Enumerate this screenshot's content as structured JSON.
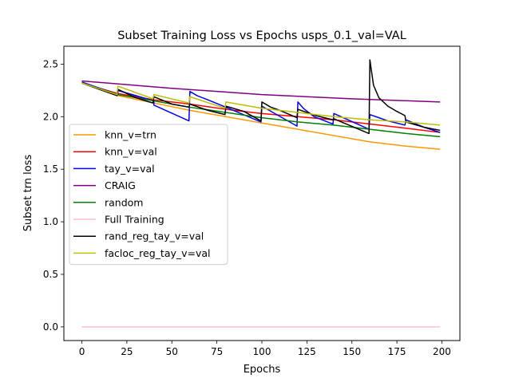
{
  "chart_data": {
    "type": "line",
    "title": "Subset Training Loss vs Epochs usps_0.1_val=VAL",
    "xlabel": "Epochs",
    "ylabel": "Subset trn loss",
    "xlim": [
      -10,
      210
    ],
    "ylim": [
      -0.13,
      2.67
    ],
    "xticks": [
      0,
      25,
      50,
      75,
      100,
      125,
      150,
      175,
      200
    ],
    "yticks": [
      0.0,
      0.5,
      1.0,
      1.5,
      2.0,
      2.5
    ],
    "xtick_labels": [
      "0",
      "25",
      "50",
      "75",
      "100",
      "125",
      "150",
      "175",
      "200"
    ],
    "ytick_labels": [
      "0.0",
      "0.5",
      "1.0",
      "1.5",
      "2.0",
      "2.5"
    ],
    "grid": false,
    "legend_position": "center-left",
    "series": [
      {
        "name": "knn_v=trn",
        "color": "#ff9900",
        "x": [
          0,
          20,
          40,
          60,
          80,
          100,
          120,
          140,
          160,
          180,
          199
        ],
        "y": [
          2.32,
          2.2,
          2.13,
          2.06,
          2.0,
          1.94,
          1.88,
          1.82,
          1.76,
          1.72,
          1.69
        ]
      },
      {
        "name": "knn_v=val",
        "color": "#ff0000",
        "x": [
          0,
          20,
          40,
          60,
          80,
          100,
          120,
          140,
          160,
          180,
          199
        ],
        "y": [
          2.32,
          2.22,
          2.16,
          2.12,
          2.07,
          2.03,
          2.0,
          1.97,
          1.93,
          1.89,
          1.85
        ]
      },
      {
        "name": "tay_v=val",
        "color": "#0000ff",
        "x": [
          0,
          20,
          20,
          40,
          40,
          59.5,
          60,
          64,
          70,
          80,
          99.5,
          100,
          119.5,
          120,
          123,
          129,
          139.5,
          140,
          159.5,
          160,
          165,
          170,
          179.5,
          180,
          190,
          199
        ],
        "y": [
          2.33,
          2.21,
          2.25,
          2.15,
          2.11,
          1.96,
          2.24,
          2.2,
          2.16,
          2.09,
          1.95,
          2.1,
          1.91,
          2.14,
          2.08,
          2.0,
          1.93,
          2.03,
          1.88,
          2.02,
          1.99,
          1.96,
          1.92,
          1.97,
          1.9,
          1.85
        ]
      },
      {
        "name": "CRAIG",
        "color": "#800080",
        "x": [
          0,
          50,
          100,
          150,
          199
        ],
        "y": [
          2.34,
          2.27,
          2.21,
          2.17,
          2.14
        ]
      },
      {
        "name": "random",
        "color": "#008000",
        "x": [
          0,
          20,
          40,
          60,
          80,
          100,
          120,
          140,
          160,
          180,
          199
        ],
        "y": [
          2.32,
          2.21,
          2.15,
          2.09,
          2.04,
          1.99,
          1.95,
          1.92,
          1.88,
          1.84,
          1.81
        ]
      },
      {
        "name": "Full Training",
        "color": "#ffc0cb",
        "x": [
          0,
          199
        ],
        "y": [
          0.0,
          0.0
        ]
      },
      {
        "name": "rand_reg_tay_v=val",
        "color": "#000000",
        "x": [
          0,
          19.5,
          20,
          25,
          30,
          39.5,
          40,
          50,
          59.5,
          60,
          70,
          79.5,
          80,
          90,
          99.5,
          100,
          105,
          110,
          119.5,
          120,
          130,
          139.5,
          140,
          159.5,
          160,
          162,
          165,
          170,
          175,
          179.5,
          180,
          190,
          199
        ],
        "y": [
          2.32,
          2.2,
          2.26,
          2.22,
          2.18,
          2.13,
          2.19,
          2.12,
          2.09,
          2.12,
          2.06,
          2.02,
          2.1,
          2.05,
          1.96,
          2.14,
          2.09,
          2.06,
          1.99,
          2.07,
          2.01,
          1.97,
          1.98,
          1.84,
          2.54,
          2.3,
          2.18,
          2.1,
          2.05,
          2.01,
          1.95,
          1.9,
          1.87
        ]
      },
      {
        "name": "facloc_reg_tay_v=val",
        "color": "#bfbf00",
        "x": [
          0,
          19.5,
          20,
          39.5,
          40,
          59.5,
          60,
          79.5,
          80,
          100,
          120,
          140,
          160,
          180,
          199
        ],
        "y": [
          2.32,
          2.21,
          2.29,
          2.17,
          2.21,
          2.13,
          2.19,
          2.08,
          2.14,
          2.08,
          2.04,
          2.0,
          1.97,
          1.95,
          1.92
        ]
      }
    ]
  }
}
